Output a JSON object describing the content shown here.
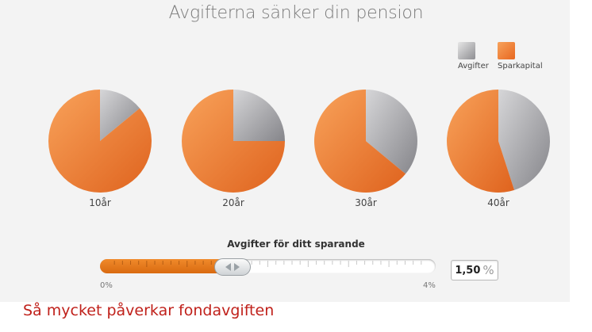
{
  "chart_data": {
    "type": "pie",
    "title": "Avgifterna sänker din pension",
    "legend": {
      "placement": "top-right",
      "entries": [
        {
          "label": "Avgifter",
          "color": "#a3a3a7"
        },
        {
          "label": "Sparkapital",
          "color": "#f0843a"
        }
      ]
    },
    "pies": [
      {
        "label": "10år",
        "slices": [
          {
            "name": "Avgifter",
            "value": 14
          },
          {
            "name": "Sparkapital",
            "value": 86
          }
        ]
      },
      {
        "label": "20år",
        "slices": [
          {
            "name": "Avgifter",
            "value": 25
          },
          {
            "name": "Sparkapital",
            "value": 75
          }
        ]
      },
      {
        "label": "30år",
        "slices": [
          {
            "name": "Avgifter",
            "value": 36
          },
          {
            "name": "Sparkapital",
            "value": 64
          }
        ]
      },
      {
        "label": "40år",
        "slices": [
          {
            "name": "Avgifter",
            "value": 45
          },
          {
            "name": "Sparkapital",
            "value": 55
          }
        ]
      }
    ]
  },
  "slider": {
    "title": "Avgifter för ditt sparande",
    "min_label": "0%",
    "max_label": "4%",
    "min": 0,
    "max": 4,
    "value": 1.5,
    "value_text": "1,50",
    "unit": "%"
  },
  "caption": "Så mycket påverkar fondavgiften"
}
